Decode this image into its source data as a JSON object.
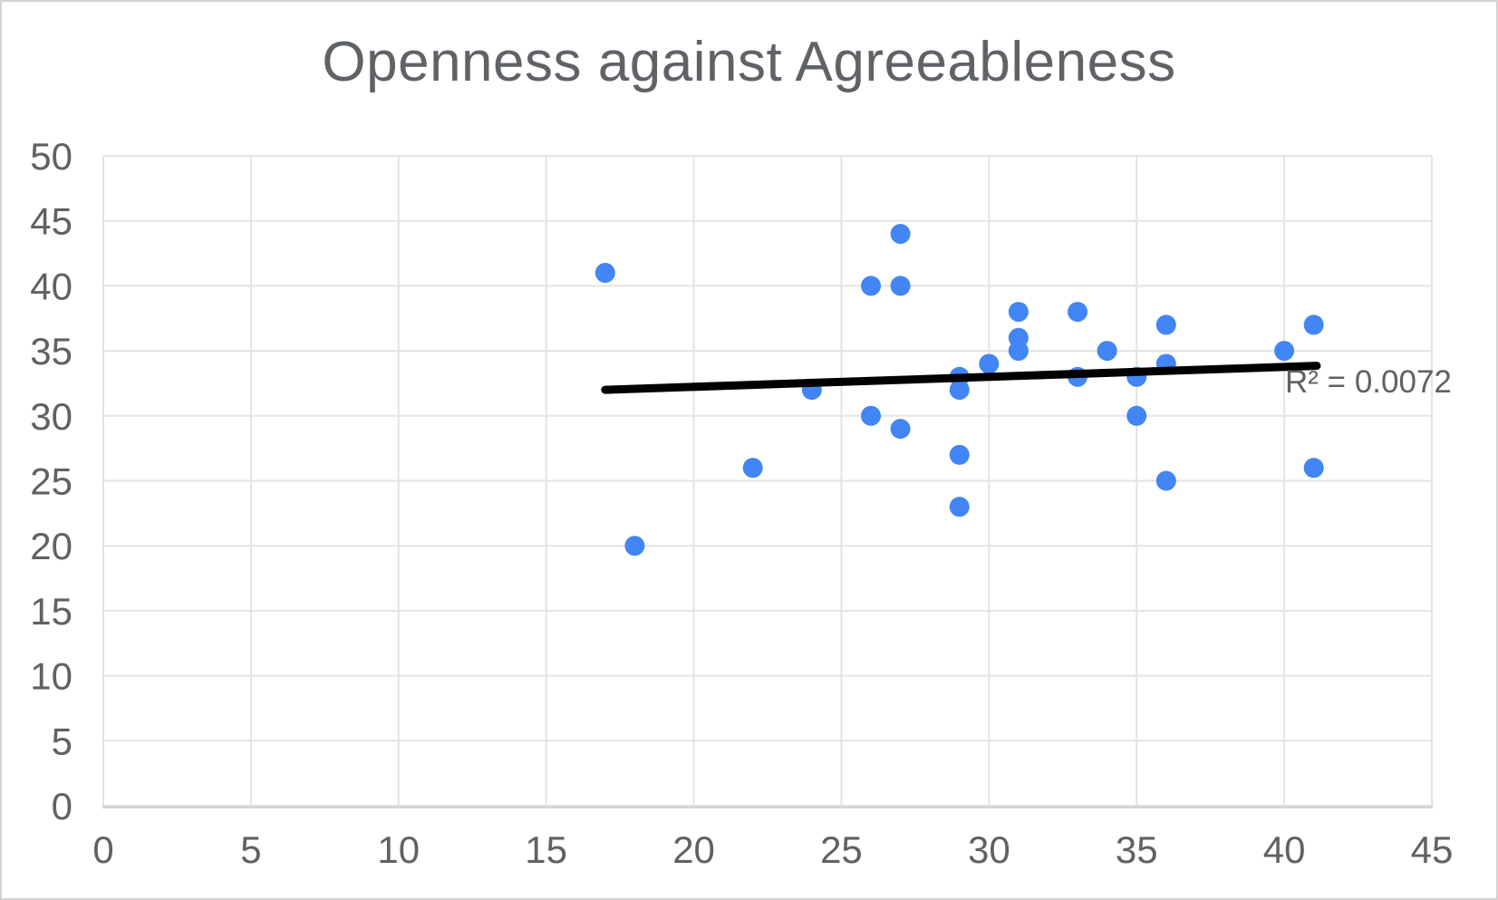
{
  "chart_data": {
    "type": "scatter",
    "title": "Openness against Agreeableness",
    "xlabel": "",
    "ylabel": "",
    "xlim": [
      0,
      45
    ],
    "ylim": [
      0,
      50
    ],
    "x_ticks": [
      0,
      5,
      10,
      15,
      20,
      25,
      30,
      35,
      40,
      45
    ],
    "y_ticks": [
      0,
      5,
      10,
      15,
      20,
      25,
      30,
      35,
      40,
      45,
      50
    ],
    "grid": true,
    "legend": "none",
    "points": [
      [
        17,
        41
      ],
      [
        18,
        20
      ],
      [
        22,
        26
      ],
      [
        24,
        32
      ],
      [
        26,
        40
      ],
      [
        26,
        30
      ],
      [
        27,
        44
      ],
      [
        27,
        40
      ],
      [
        27,
        29
      ],
      [
        29,
        33
      ],
      [
        29,
        32
      ],
      [
        29,
        27
      ],
      [
        29,
        23
      ],
      [
        30,
        34
      ],
      [
        31,
        38
      ],
      [
        31,
        36
      ],
      [
        31,
        35
      ],
      [
        33,
        38
      ],
      [
        33,
        33
      ],
      [
        34,
        35
      ],
      [
        35,
        33
      ],
      [
        35,
        30
      ],
      [
        36,
        37
      ],
      [
        36,
        34
      ],
      [
        36,
        25
      ],
      [
        40,
        35
      ],
      [
        41,
        37
      ],
      [
        41,
        26
      ]
    ],
    "trendline": {
      "x_start": 17,
      "y_start": 32.0,
      "x_end": 41.1,
      "y_end": 33.85,
      "r_squared": 0.0072,
      "label": "R² = 0.0072"
    },
    "colors": {
      "point": "#4285F4",
      "trendline": "#000000",
      "gridline": "#e3e3e3",
      "axis_line": "#d6d6d6",
      "tick_text": "#616161",
      "title_text": "#5f6368"
    }
  }
}
